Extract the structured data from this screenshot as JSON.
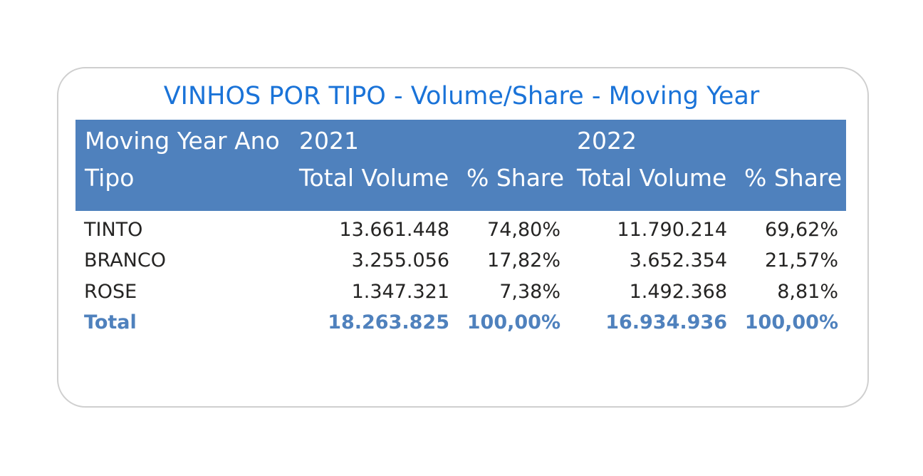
{
  "title": "VINHOS POR TIPO - Volume/Share - Moving Year",
  "chart_data": {
    "type": "table",
    "title": "VINHOS POR TIPO - Volume/Share - Moving Year",
    "row_header_labels": [
      "Moving Year Ano",
      "Tipo"
    ],
    "years": [
      "2021",
      "2022"
    ],
    "columns": [
      "Total Volume",
      "% Share"
    ],
    "rows": [
      {
        "tipo": "TINTO",
        "vol_2021": "13.661.448",
        "share_2021": "74,80%",
        "vol_2022": "11.790.214",
        "share_2022": "69,62%"
      },
      {
        "tipo": "BRANCO",
        "vol_2021": "3.255.056",
        "share_2021": "17,82%",
        "vol_2022": "3.652.354",
        "share_2022": "21,57%"
      },
      {
        "tipo": "ROSE",
        "vol_2021": "1.347.321",
        "share_2021": "7,38%",
        "vol_2022": "1.492.368",
        "share_2022": "8,81%"
      }
    ],
    "total": {
      "tipo": "Total",
      "vol_2021": "18.263.825",
      "share_2021": "100,00%",
      "vol_2022": "16.934.936",
      "share_2022": "100,00%"
    }
  },
  "colors": {
    "title": "#1a73d8",
    "header_bg": "#4f81bd",
    "total_text": "#4f81bd",
    "body_text": "#252423",
    "border": "#cfcfcf"
  }
}
